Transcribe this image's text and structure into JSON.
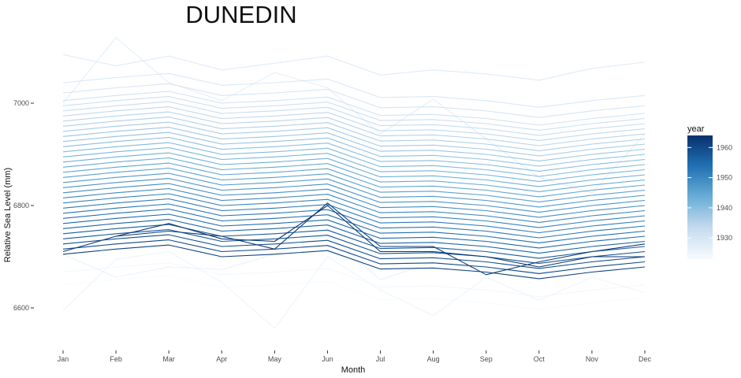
{
  "chart_data": {
    "type": "line",
    "title": "DUNEDIN",
    "xlabel": "Month",
    "ylabel": "Relative Sea Level (mm)",
    "x_categories": [
      "Jan",
      "Feb",
      "Mar",
      "Apr",
      "May",
      "Jun",
      "Jul",
      "Aug",
      "Sep",
      "Oct",
      "Nov",
      "Dec"
    ],
    "y_ticks": [
      6600,
      6800,
      7000
    ],
    "ylim": [
      6540,
      7140
    ],
    "grid": false,
    "legend": {
      "title": "year",
      "position": "right",
      "ticks": [
        1930,
        1940,
        1950,
        1960
      ],
      "range": [
        1923,
        1964
      ],
      "color_low": "#f7fbff",
      "color_high": "#08306b"
    },
    "base_profile": [
      6895,
      6905,
      6913,
      6890,
      6895,
      6902,
      6866,
      6868,
      6860,
      6847,
      6860,
      6870
    ],
    "series_rule": "series with no explicit values follow base_profile + offset",
    "series": [
      {
        "year": 1923,
        "offset": -250
      },
      {
        "year": 1924,
        "offset": -225
      },
      {
        "year": 1925,
        "values": [
          6595,
          6695,
          6710,
          6650,
          6560,
          6700,
          6635,
          6585,
          6660,
          6615,
          6660,
          6630
        ]
      },
      {
        "year": 1926,
        "values": [
          6705,
          6660,
          6680,
          6675,
          6705,
          6745,
          6655,
          6690,
          6675,
          6670,
          6680,
          6690
        ]
      },
      {
        "year": 1927,
        "values": [
          7000,
          7128,
          7040,
          7005,
          7060,
          7030,
          6940,
          7008,
          6930,
          6855,
          6825,
          6940
        ]
      },
      {
        "year": 1928,
        "values": [
          7095,
          7073,
          7092,
          7065,
          7078,
          7092,
          7055,
          7065,
          7057,
          7045,
          7068,
          7080
        ]
      },
      {
        "year": 1929,
        "offset": 145
      },
      {
        "year": 1930,
        "offset": 125
      },
      {
        "year": 1931,
        "offset": 110
      },
      {
        "year": 1932,
        "offset": 100
      },
      {
        "year": 1933,
        "offset": 90
      },
      {
        "year": 1934,
        "offset": 80
      },
      {
        "year": 1935,
        "offset": 70
      },
      {
        "year": 1936,
        "offset": 60
      },
      {
        "year": 1937,
        "offset": 50
      },
      {
        "year": 1938,
        "offset": 40
      },
      {
        "year": 1939,
        "offset": 30
      },
      {
        "year": 1940,
        "offset": 20
      },
      {
        "year": 1941,
        "offset": 10
      },
      {
        "year": 1942,
        "offset": 0
      },
      {
        "year": 1943,
        "offset": -10
      },
      {
        "year": 1944,
        "offset": -20
      },
      {
        "year": 1945,
        "offset": -30
      },
      {
        "year": 1946,
        "offset": -40
      },
      {
        "year": 1947,
        "offset": -50
      },
      {
        "year": 1948,
        "offset": -60
      },
      {
        "year": 1949,
        "offset": -70
      },
      {
        "year": 1950,
        "offset": -80
      },
      {
        "year": 1951,
        "offset": -90
      },
      {
        "year": 1952,
        "offset": -100
      },
      {
        "year": 1953,
        "offset": -110
      },
      {
        "year": 1954,
        "offset": -120
      },
      {
        "year": 1955,
        "offset": -130
      },
      {
        "year": 1956,
        "offset": -140
      },
      {
        "year": 1957,
        "offset": -150
      },
      {
        "year": 1958,
        "offset": -160
      },
      {
        "year": 1959,
        "offset": -170
      },
      {
        "year": 1960,
        "offset": -180
      },
      {
        "year": 1961,
        "offset": -190
      },
      {
        "year": 1962,
        "values": [
          6710,
          6740,
          6750,
          6740,
          6715,
          6805,
          6720,
          6720,
          6665,
          6690,
          6710,
          6725
        ]
      },
      {
        "year": 1963,
        "values": [
          null,
          6740,
          6765,
          6735,
          6730,
          6800,
          6710,
          6710,
          6700,
          6680,
          6700,
          6700
        ]
      }
    ]
  }
}
